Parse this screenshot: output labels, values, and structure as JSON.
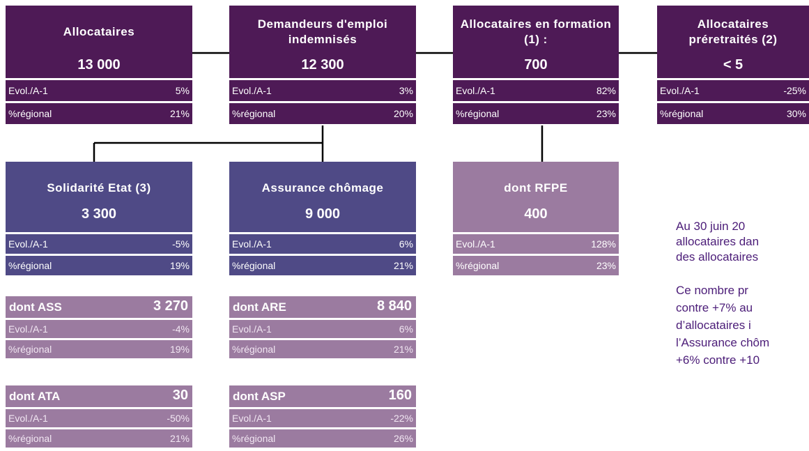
{
  "nodes": [
    {
      "title": "Allocataires",
      "value": "13 000",
      "rows": [
        {
          "label": "Evol./A-1",
          "value": "5%"
        },
        {
          "label": "%régional",
          "value": "21%"
        }
      ]
    },
    {
      "title": "Demandeurs d'emploi indemnisés",
      "value": "12 300",
      "rows": [
        {
          "label": "Evol./A-1",
          "value": "3%"
        },
        {
          "label": "%régional",
          "value": "20%"
        }
      ]
    },
    {
      "title": "Allocataires en formation (1) :",
      "value": "700",
      "rows": [
        {
          "label": "Evol./A-1",
          "value": "82%"
        },
        {
          "label": "%régional",
          "value": "23%"
        }
      ]
    },
    {
      "title": "Allocataires préretraités (2)",
      "value": "< 5",
      "rows": [
        {
          "label": "Evol./A-1",
          "value": "-25%"
        },
        {
          "label": "%régional",
          "value": "30%"
        }
      ]
    },
    {
      "title": "Solidarité Etat (3)",
      "value": "3 300",
      "rows": [
        {
          "label": "Evol./A-1",
          "value": "-5%"
        },
        {
          "label": "%régional",
          "value": "19%"
        }
      ]
    },
    {
      "title": "Assurance chômage",
      "value": "9 000",
      "rows": [
        {
          "label": "Evol./A-1",
          "value": "6%"
        },
        {
          "label": "%régional",
          "value": "21%"
        }
      ]
    },
    {
      "title": "dont RFPE",
      "value": "400",
      "rows": [
        {
          "label": "Evol./A-1",
          "value": "128%"
        },
        {
          "label": "%régional",
          "value": "23%"
        }
      ]
    },
    {
      "title": "dont ASS",
      "value": "3 270",
      "rows": [
        {
          "label": "Evol./A-1",
          "value": "-4%"
        },
        {
          "label": "%régional",
          "value": "19%"
        }
      ]
    },
    {
      "title": "dont ARE",
      "value": "8 840",
      "rows": [
        {
          "label": "Evol./A-1",
          "value": "6%"
        },
        {
          "label": "%régional",
          "value": "21%"
        }
      ]
    },
    {
      "title": "dont ATA",
      "value": "30",
      "rows": [
        {
          "label": "Evol./A-1",
          "value": "-50%"
        },
        {
          "label": "%régional",
          "value": "21%"
        }
      ]
    },
    {
      "title": "dont ASP",
      "value": "160",
      "rows": [
        {
          "label": "Evol./A-1",
          "value": "-22%"
        },
        {
          "label": "%régional",
          "value": "26%"
        }
      ]
    }
  ],
  "text": {
    "paragraphs": [
      [
        "Au 30 juin 20",
        "allocataires dan",
        "des allocataires"
      ],
      [
        "Ce nombre pr",
        "contre +7% au",
        "d’allocataires i",
        "l’Assurance chôm",
        "+6% contre +10"
      ]
    ]
  }
}
